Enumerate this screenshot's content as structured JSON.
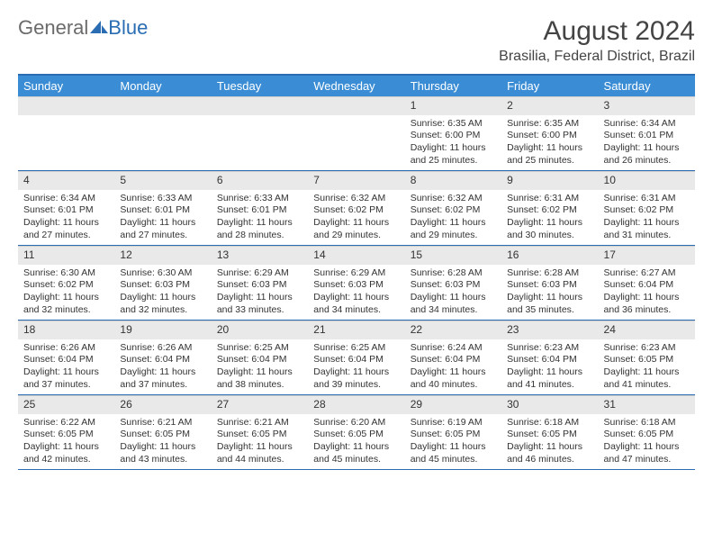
{
  "logo": {
    "text_gray": "General",
    "text_blue": "Blue"
  },
  "title": {
    "month_year": "August 2024",
    "location": "Brasilia, Federal District, Brazil"
  },
  "colors": {
    "header_bar": "#3a8dd4",
    "header_border": "#2a6db3",
    "daynum_bg": "#e9e9e9",
    "text": "#333333",
    "logo_gray": "#6b6b6b",
    "logo_blue": "#2a6db3",
    "background": "#ffffff"
  },
  "day_headers": [
    "Sunday",
    "Monday",
    "Tuesday",
    "Wednesday",
    "Thursday",
    "Friday",
    "Saturday"
  ],
  "weeks": [
    [
      {
        "n": "",
        "sunrise": "",
        "sunset": "",
        "daylight": ""
      },
      {
        "n": "",
        "sunrise": "",
        "sunset": "",
        "daylight": ""
      },
      {
        "n": "",
        "sunrise": "",
        "sunset": "",
        "daylight": ""
      },
      {
        "n": "",
        "sunrise": "",
        "sunset": "",
        "daylight": ""
      },
      {
        "n": "1",
        "sunrise": "Sunrise: 6:35 AM",
        "sunset": "Sunset: 6:00 PM",
        "daylight": "Daylight: 11 hours and 25 minutes."
      },
      {
        "n": "2",
        "sunrise": "Sunrise: 6:35 AM",
        "sunset": "Sunset: 6:00 PM",
        "daylight": "Daylight: 11 hours and 25 minutes."
      },
      {
        "n": "3",
        "sunrise": "Sunrise: 6:34 AM",
        "sunset": "Sunset: 6:01 PM",
        "daylight": "Daylight: 11 hours and 26 minutes."
      }
    ],
    [
      {
        "n": "4",
        "sunrise": "Sunrise: 6:34 AM",
        "sunset": "Sunset: 6:01 PM",
        "daylight": "Daylight: 11 hours and 27 minutes."
      },
      {
        "n": "5",
        "sunrise": "Sunrise: 6:33 AM",
        "sunset": "Sunset: 6:01 PM",
        "daylight": "Daylight: 11 hours and 27 minutes."
      },
      {
        "n": "6",
        "sunrise": "Sunrise: 6:33 AM",
        "sunset": "Sunset: 6:01 PM",
        "daylight": "Daylight: 11 hours and 28 minutes."
      },
      {
        "n": "7",
        "sunrise": "Sunrise: 6:32 AM",
        "sunset": "Sunset: 6:02 PM",
        "daylight": "Daylight: 11 hours and 29 minutes."
      },
      {
        "n": "8",
        "sunrise": "Sunrise: 6:32 AM",
        "sunset": "Sunset: 6:02 PM",
        "daylight": "Daylight: 11 hours and 29 minutes."
      },
      {
        "n": "9",
        "sunrise": "Sunrise: 6:31 AM",
        "sunset": "Sunset: 6:02 PM",
        "daylight": "Daylight: 11 hours and 30 minutes."
      },
      {
        "n": "10",
        "sunrise": "Sunrise: 6:31 AM",
        "sunset": "Sunset: 6:02 PM",
        "daylight": "Daylight: 11 hours and 31 minutes."
      }
    ],
    [
      {
        "n": "11",
        "sunrise": "Sunrise: 6:30 AM",
        "sunset": "Sunset: 6:02 PM",
        "daylight": "Daylight: 11 hours and 32 minutes."
      },
      {
        "n": "12",
        "sunrise": "Sunrise: 6:30 AM",
        "sunset": "Sunset: 6:03 PM",
        "daylight": "Daylight: 11 hours and 32 minutes."
      },
      {
        "n": "13",
        "sunrise": "Sunrise: 6:29 AM",
        "sunset": "Sunset: 6:03 PM",
        "daylight": "Daylight: 11 hours and 33 minutes."
      },
      {
        "n": "14",
        "sunrise": "Sunrise: 6:29 AM",
        "sunset": "Sunset: 6:03 PM",
        "daylight": "Daylight: 11 hours and 34 minutes."
      },
      {
        "n": "15",
        "sunrise": "Sunrise: 6:28 AM",
        "sunset": "Sunset: 6:03 PM",
        "daylight": "Daylight: 11 hours and 34 minutes."
      },
      {
        "n": "16",
        "sunrise": "Sunrise: 6:28 AM",
        "sunset": "Sunset: 6:03 PM",
        "daylight": "Daylight: 11 hours and 35 minutes."
      },
      {
        "n": "17",
        "sunrise": "Sunrise: 6:27 AM",
        "sunset": "Sunset: 6:04 PM",
        "daylight": "Daylight: 11 hours and 36 minutes."
      }
    ],
    [
      {
        "n": "18",
        "sunrise": "Sunrise: 6:26 AM",
        "sunset": "Sunset: 6:04 PM",
        "daylight": "Daylight: 11 hours and 37 minutes."
      },
      {
        "n": "19",
        "sunrise": "Sunrise: 6:26 AM",
        "sunset": "Sunset: 6:04 PM",
        "daylight": "Daylight: 11 hours and 37 minutes."
      },
      {
        "n": "20",
        "sunrise": "Sunrise: 6:25 AM",
        "sunset": "Sunset: 6:04 PM",
        "daylight": "Daylight: 11 hours and 38 minutes."
      },
      {
        "n": "21",
        "sunrise": "Sunrise: 6:25 AM",
        "sunset": "Sunset: 6:04 PM",
        "daylight": "Daylight: 11 hours and 39 minutes."
      },
      {
        "n": "22",
        "sunrise": "Sunrise: 6:24 AM",
        "sunset": "Sunset: 6:04 PM",
        "daylight": "Daylight: 11 hours and 40 minutes."
      },
      {
        "n": "23",
        "sunrise": "Sunrise: 6:23 AM",
        "sunset": "Sunset: 6:04 PM",
        "daylight": "Daylight: 11 hours and 41 minutes."
      },
      {
        "n": "24",
        "sunrise": "Sunrise: 6:23 AM",
        "sunset": "Sunset: 6:05 PM",
        "daylight": "Daylight: 11 hours and 41 minutes."
      }
    ],
    [
      {
        "n": "25",
        "sunrise": "Sunrise: 6:22 AM",
        "sunset": "Sunset: 6:05 PM",
        "daylight": "Daylight: 11 hours and 42 minutes."
      },
      {
        "n": "26",
        "sunrise": "Sunrise: 6:21 AM",
        "sunset": "Sunset: 6:05 PM",
        "daylight": "Daylight: 11 hours and 43 minutes."
      },
      {
        "n": "27",
        "sunrise": "Sunrise: 6:21 AM",
        "sunset": "Sunset: 6:05 PM",
        "daylight": "Daylight: 11 hours and 44 minutes."
      },
      {
        "n": "28",
        "sunrise": "Sunrise: 6:20 AM",
        "sunset": "Sunset: 6:05 PM",
        "daylight": "Daylight: 11 hours and 45 minutes."
      },
      {
        "n": "29",
        "sunrise": "Sunrise: 6:19 AM",
        "sunset": "Sunset: 6:05 PM",
        "daylight": "Daylight: 11 hours and 45 minutes."
      },
      {
        "n": "30",
        "sunrise": "Sunrise: 6:18 AM",
        "sunset": "Sunset: 6:05 PM",
        "daylight": "Daylight: 11 hours and 46 minutes."
      },
      {
        "n": "31",
        "sunrise": "Sunrise: 6:18 AM",
        "sunset": "Sunset: 6:05 PM",
        "daylight": "Daylight: 11 hours and 47 minutes."
      }
    ]
  ]
}
